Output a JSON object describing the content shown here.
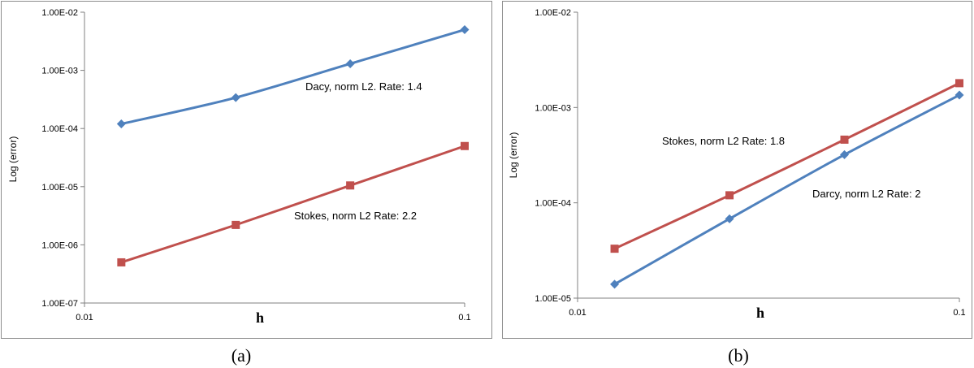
{
  "chart_data": [
    {
      "type": "line",
      "caption": "(a)",
      "xlabel": "h",
      "ylabel": "Log (error)",
      "x_scale": "log",
      "y_scale": "log",
      "xlim": [
        0.01,
        0.1
      ],
      "ylim": [
        1e-07,
        0.01
      ],
      "x_tick_labels": [
        "0.01",
        "0.1"
      ],
      "y_tick_labels": [
        "1.00E-07",
        "1.00E-06",
        "1.00E-05",
        "1.00E-04",
        "1.00E-03",
        "1.00E-02"
      ],
      "grid": false,
      "series": [
        {
          "color": "#4F81BD",
          "marker": "diamond",
          "x": [
            0.0125,
            0.025,
            0.05,
            0.1
          ],
          "y": [
            0.00012,
            0.00034,
            0.0013,
            0.005
          ]
        },
        {
          "color": "#C0504D",
          "marker": "square",
          "x": [
            0.0125,
            0.025,
            0.05,
            0.1
          ],
          "y": [
            5e-07,
            2.2e-06,
            1.05e-05,
            5e-05
          ]
        }
      ],
      "annotations": [
        {
          "text": "Dacy, norm L2. Rate:  1.4"
        },
        {
          "text": "Stokes, norm L2 Rate: 2.2"
        }
      ]
    },
    {
      "type": "line",
      "caption": "(b)",
      "xlabel": "h",
      "ylabel": "Log (error)",
      "x_scale": "log",
      "y_scale": "log",
      "xlim": [
        0.01,
        0.1
      ],
      "ylim": [
        1e-05,
        0.01
      ],
      "x_tick_labels": [
        "0.01",
        "0.1"
      ],
      "y_tick_labels": [
        "1.00E-05",
        "1.00E-04",
        "1.00E-03",
        "1.00E-02"
      ],
      "grid": false,
      "series": [
        {
          "color": "#C0504D",
          "marker": "square",
          "x": [
            0.0125,
            0.025,
            0.05,
            0.1
          ],
          "y": [
            3.3e-05,
            0.00012,
            0.00046,
            0.0018
          ]
        },
        {
          "color": "#4F81BD",
          "marker": "diamond",
          "x": [
            0.0125,
            0.025,
            0.05,
            0.1
          ],
          "y": [
            1.4e-05,
            6.8e-05,
            0.00032,
            0.00135
          ]
        }
      ],
      "annotations": [
        {
          "text": "Stokes, norm L2 Rate: 1.8"
        },
        {
          "text": "Darcy, norm L2 Rate: 2"
        }
      ]
    }
  ]
}
